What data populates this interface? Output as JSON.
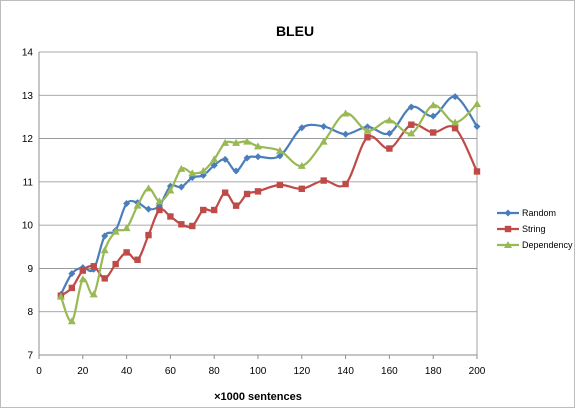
{
  "chart_data": {
    "type": "line",
    "title": "BLEU",
    "xlabel": "×1000 sentences",
    "ylabel": "",
    "xlim": [
      0,
      200
    ],
    "ylim": [
      7,
      14
    ],
    "x_ticks": [
      0,
      20,
      40,
      60,
      80,
      100,
      120,
      140,
      160,
      180,
      200
    ],
    "y_ticks": [
      7,
      8,
      9,
      10,
      11,
      12,
      13,
      14
    ],
    "grid": "horizontal",
    "smooth": true,
    "legend_position": "right",
    "series": [
      {
        "name": "Random",
        "color": "#4a7ebb",
        "marker": "diamond",
        "x": [
          10,
          15,
          20,
          25,
          30,
          35,
          40,
          45,
          50,
          55,
          60,
          65,
          70,
          75,
          80,
          85,
          90,
          95,
          100,
          110,
          120,
          130,
          140,
          150,
          160,
          170,
          180,
          190,
          200
        ],
        "y": [
          8.4,
          8.88,
          9.02,
          8.98,
          9.75,
          9.88,
          10.5,
          10.52,
          10.37,
          10.45,
          10.9,
          10.88,
          11.1,
          11.15,
          11.38,
          11.52,
          11.25,
          11.55,
          11.58,
          11.6,
          12.25,
          12.28,
          12.1,
          12.27,
          12.12,
          12.73,
          12.52,
          12.97,
          12.28
        ]
      },
      {
        "name": "String",
        "color": "#be4b48",
        "marker": "square",
        "x": [
          10,
          15,
          20,
          25,
          30,
          35,
          40,
          45,
          50,
          55,
          60,
          65,
          70,
          75,
          80,
          85,
          90,
          95,
          100,
          110,
          120,
          130,
          140,
          150,
          160,
          170,
          180,
          190,
          200
        ],
        "y": [
          8.37,
          8.55,
          8.95,
          9.05,
          8.77,
          9.1,
          9.37,
          9.2,
          9.77,
          10.35,
          10.2,
          10.02,
          9.98,
          10.35,
          10.35,
          10.75,
          10.45,
          10.72,
          10.78,
          10.93,
          10.84,
          11.03,
          10.95,
          12.03,
          11.77,
          12.32,
          12.14,
          12.24,
          11.24
        ]
      },
      {
        "name": "Dependency",
        "color": "#98b954",
        "marker": "triangle",
        "x": [
          10,
          15,
          20,
          25,
          30,
          35,
          40,
          45,
          50,
          55,
          60,
          65,
          70,
          75,
          80,
          85,
          90,
          95,
          100,
          110,
          120,
          130,
          140,
          150,
          160,
          170,
          180,
          190,
          200
        ],
        "y": [
          8.35,
          7.78,
          8.75,
          8.4,
          9.42,
          9.85,
          9.93,
          10.45,
          10.85,
          10.55,
          10.8,
          11.3,
          11.2,
          11.25,
          11.52,
          11.9,
          11.9,
          11.93,
          11.82,
          11.72,
          11.37,
          11.93,
          12.58,
          12.18,
          12.42,
          12.12,
          12.77,
          12.37,
          12.8
        ]
      }
    ]
  }
}
